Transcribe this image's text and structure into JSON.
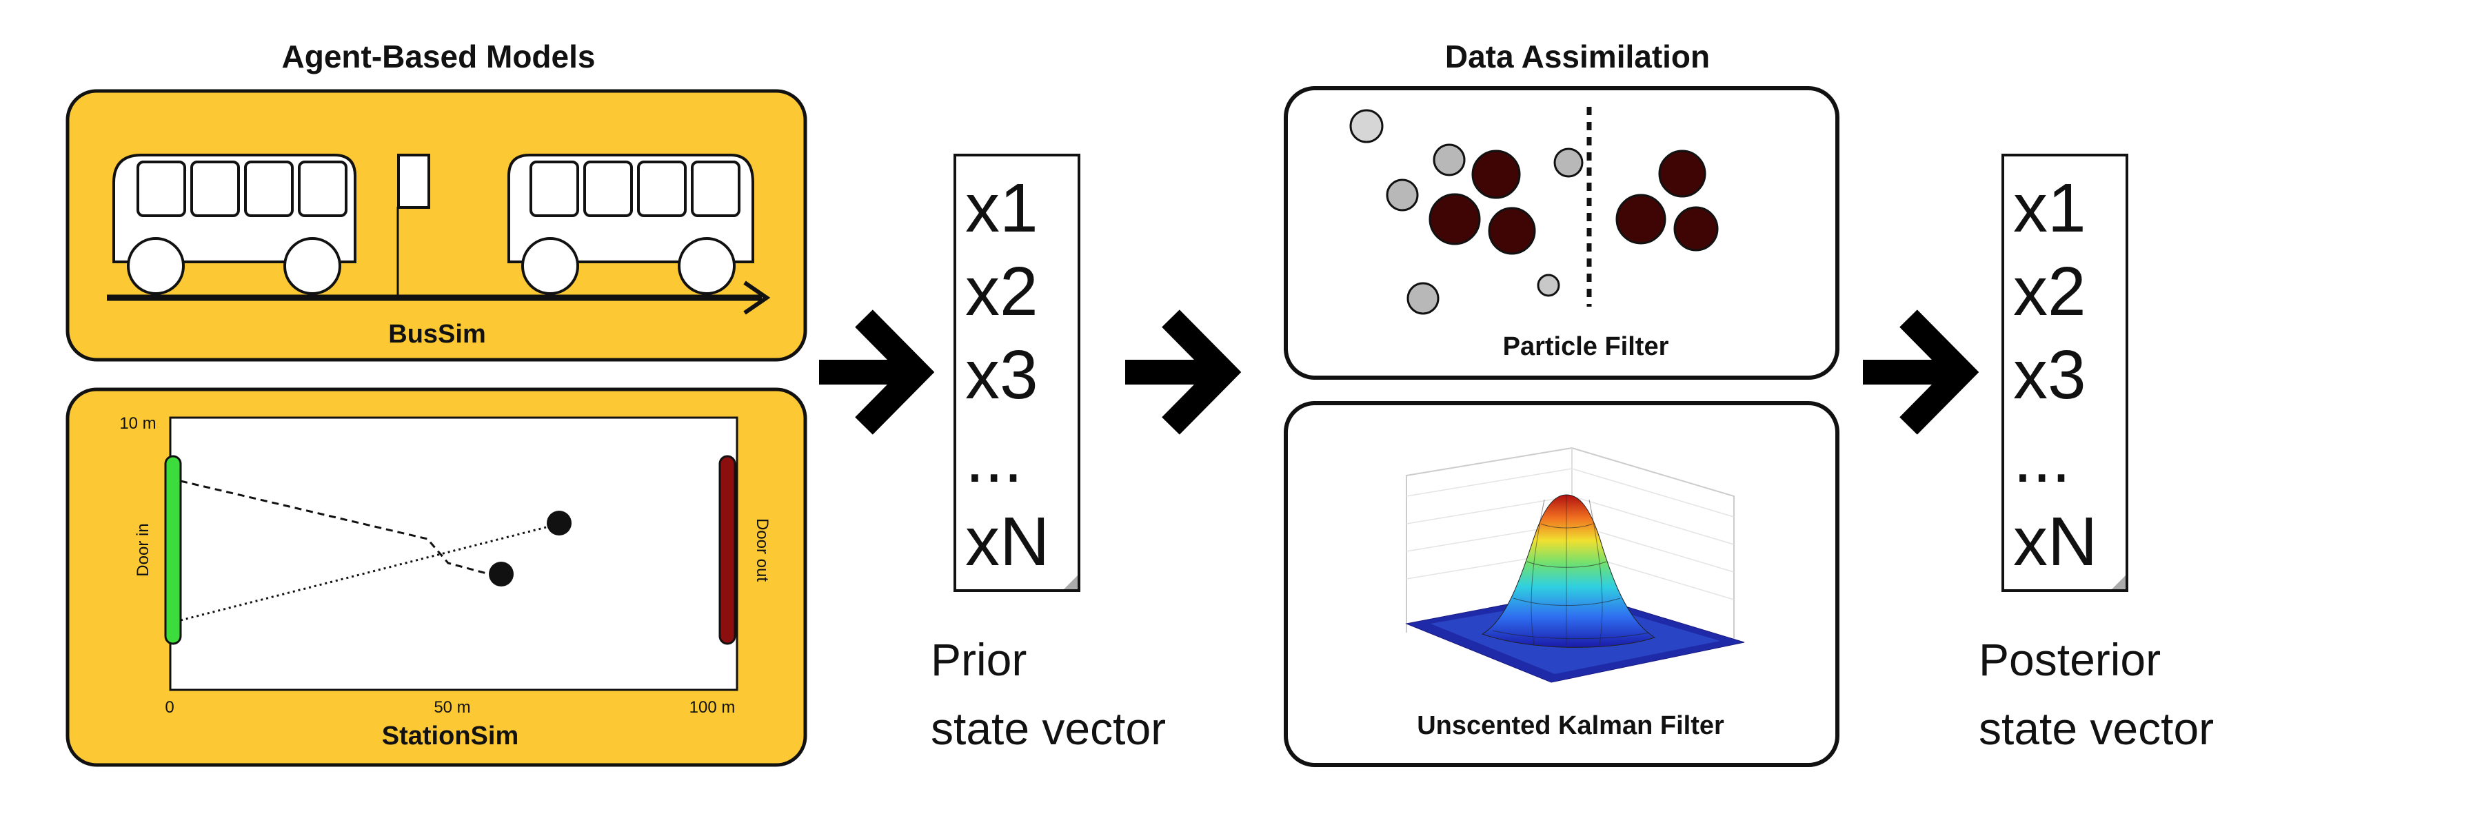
{
  "abm": {
    "title": "Agent-Based Models",
    "bussim_label": "BusSim",
    "stationsim_label": "StationSim",
    "station": {
      "y_top": "10 m",
      "x_start": "0",
      "x_mid": "50 m",
      "x_end": "100 m",
      "door_in": "Door in",
      "door_out": "Door out"
    }
  },
  "prior": {
    "vector": [
      "x1",
      "x2",
      "x3",
      "...",
      "xN"
    ],
    "caption_line1": "Prior",
    "caption_line2": "state vector"
  },
  "da": {
    "title": "Data Assimilation",
    "particle_filter_label": "Particle Filter",
    "ukf_label": "Unscented Kalman Filter"
  },
  "posterior": {
    "vector": [
      "x1",
      "x2",
      "x3",
      "...",
      "xN"
    ],
    "caption_line1": "Posterior",
    "caption_line2": "state vector"
  },
  "colors": {
    "panel_fill": "#fcc934",
    "door_in": "#3ddc3d",
    "door_out": "#8b0f0f",
    "particle_dark": "#3f0505",
    "particle_light": "#c4c4c4",
    "arrow": "#000000"
  }
}
